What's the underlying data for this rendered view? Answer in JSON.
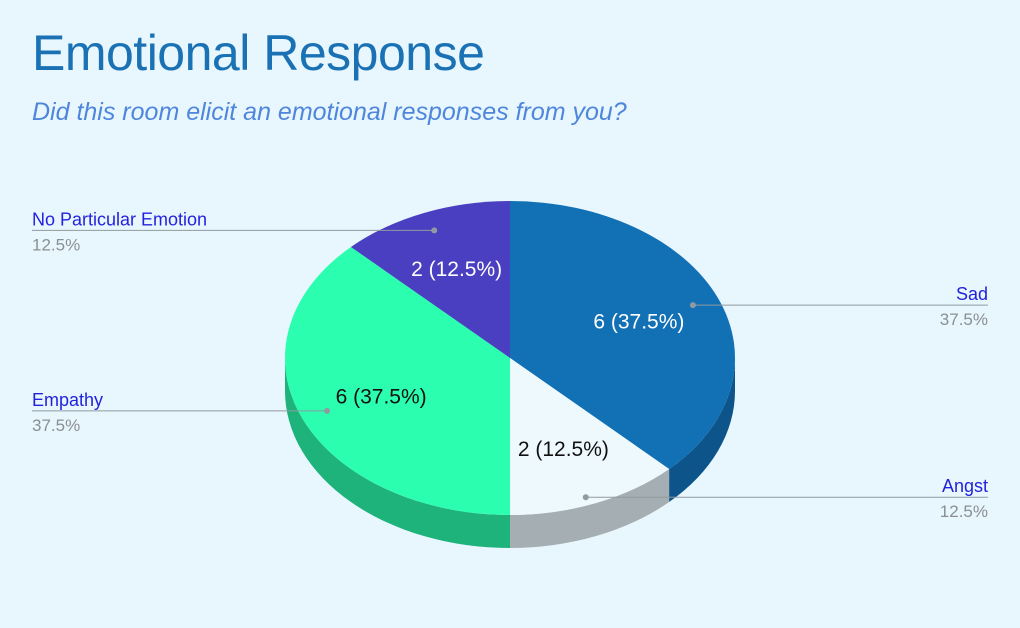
{
  "chart_data": {
    "type": "pie",
    "style": "3d",
    "title": "Emotional Response",
    "subtitle": "Did this room elicit an emotional responses from you?",
    "unit": "responses",
    "slices": [
      {
        "label": "Sad",
        "value": 6,
        "percent": "37.5%",
        "data_label": "6 (37.5%)",
        "color": "#1270b4",
        "side_color": "#0c5489",
        "label_side": "right"
      },
      {
        "label": "Angst",
        "value": 2,
        "percent": "12.5%",
        "data_label": "2 (12.5%)",
        "color": "#eef9fe",
        "side_color": "#a5aeb3",
        "label_side": "right"
      },
      {
        "label": "Empathy",
        "value": 6,
        "percent": "37.5%",
        "data_label": "6 (37.5%)",
        "color": "#2cfeaf",
        "side_color": "#1db37b",
        "label_side": "left"
      },
      {
        "label": "No Particular Emotion",
        "value": 2,
        "percent": "12.5%",
        "data_label": "2 (12.5%)",
        "color": "#4a3fc0",
        "side_color": "#36309a",
        "label_side": "left"
      }
    ],
    "colors": {
      "background": "#e8f7fe",
      "title": "#1a72b5",
      "subtitle": "#4f86dc",
      "legend_label": "#2222dd",
      "legend_percent": "#8a8f93",
      "leader_line": "#909aa0"
    }
  }
}
